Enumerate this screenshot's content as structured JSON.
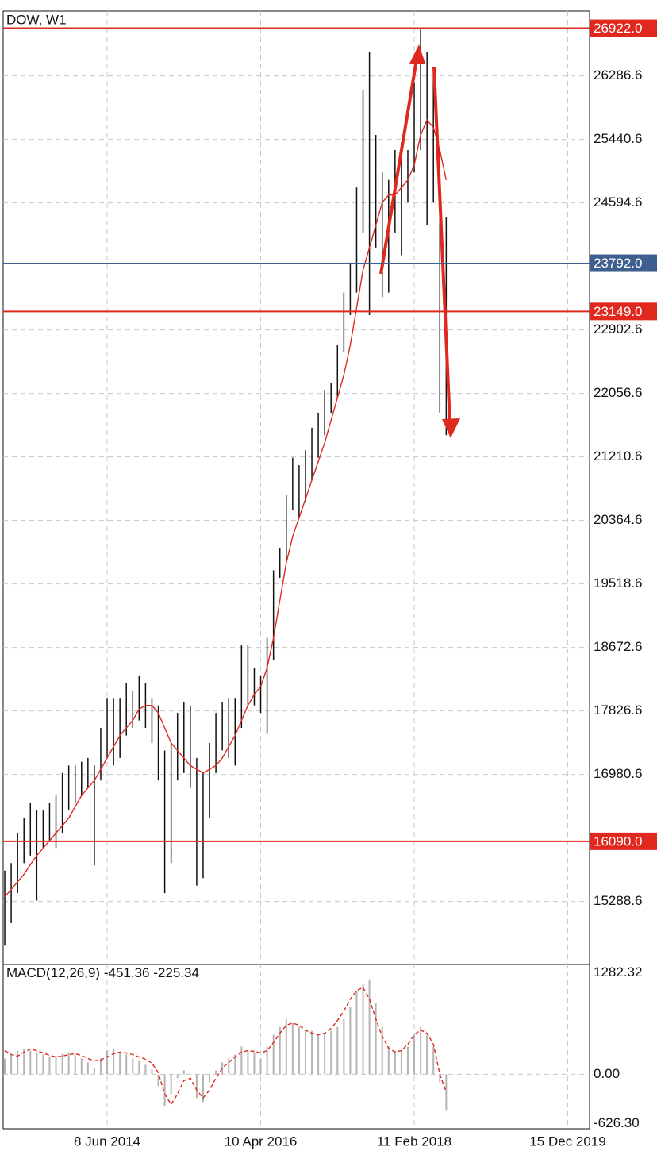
{
  "chart_data": {
    "type": "ohlc",
    "title": "DOW, W1",
    "categories": [
      null,
      null,
      null,
      null,
      null,
      null,
      null,
      null,
      null,
      null,
      null,
      null,
      null,
      null,
      null,
      null,
      "8 Jun 2014",
      null,
      null,
      null,
      null,
      null,
      null,
      null,
      null,
      null,
      null,
      null,
      null,
      null,
      null,
      null,
      null,
      null,
      null,
      null,
      null,
      null,
      null,
      null,
      "10 Apr 2016",
      null,
      null,
      null,
      null,
      null,
      null,
      null,
      null,
      null,
      null,
      null,
      null,
      null,
      null,
      null,
      null,
      null,
      null,
      null,
      null,
      null,
      null,
      null,
      "11 Feb 2018",
      null,
      null,
      null,
      null,
      null,
      null,
      null,
      null,
      null,
      null,
      null,
      null,
      null,
      null,
      null,
      null,
      null,
      null,
      null,
      null,
      null,
      null,
      null,
      "15 Dec 2019",
      null,
      null,
      null
    ],
    "high": [
      15700,
      15800,
      16200,
      16400,
      16600,
      16500,
      16500,
      16600,
      16700,
      17000,
      17100,
      17100,
      17150,
      17200,
      17100,
      17600,
      18000,
      18000,
      18000,
      18200,
      18100,
      18300,
      18200,
      18000,
      17900,
      17300,
      17400,
      17800,
      17950,
      17900,
      17200,
      17000,
      17400,
      17800,
      17950,
      18000,
      18000,
      18700,
      18700,
      18400,
      18300,
      18800,
      19700,
      20000,
      20700,
      21200,
      21100,
      21300,
      21600,
      21800,
      22100,
      22200,
      22700,
      23400,
      23800,
      24800,
      26100,
      26600,
      25500,
      25000,
      24900,
      25300,
      25400,
      25300,
      26200,
      26922,
      26600,
      26300,
      25300,
      24400,
      null,
      null,
      null,
      null,
      null,
      null,
      null,
      null,
      null,
      null,
      null,
      null,
      null,
      null,
      null,
      null,
      null,
      null,
      null,
      null,
      null,
      null
    ],
    "low": [
      14700,
      15000,
      15400,
      15800,
      15900,
      15300,
      16000,
      16100,
      16000,
      16200,
      16500,
      16600,
      16700,
      16800,
      15770,
      16900,
      17200,
      17100,
      17200,
      17500,
      17600,
      17700,
      17600,
      17400,
      16900,
      15400,
      15800,
      16900,
      17000,
      16800,
      15500,
      15600,
      16400,
      17000,
      17300,
      17200,
      17100,
      17600,
      17900,
      17900,
      17800,
      17520,
      18500,
      19600,
      19800,
      20500,
      20400,
      20600,
      20900,
      21200,
      21500,
      21800,
      22000,
      22600,
      23100,
      23400,
      24200,
      23100,
      24000,
      23340,
      23400,
      24200,
      23900,
      24600,
      25000,
      25300,
      24300,
      24600,
      21800,
      21500,
      null,
      null,
      null,
      null,
      null,
      null,
      null,
      null,
      null,
      null,
      null,
      null,
      null,
      null,
      null,
      null,
      null,
      null,
      null,
      null,
      null,
      null
    ],
    "color": "#111111",
    "ma": {
      "color": "#e0281e",
      "values": [
        15350,
        15450,
        15550,
        15650,
        15780,
        15900,
        16000,
        16100,
        16200,
        16300,
        16400,
        16550,
        16700,
        16800,
        16900,
        17050,
        17200,
        17350,
        17500,
        17600,
        17700,
        17850,
        17900,
        17900,
        17800,
        17600,
        17400,
        17300,
        17200,
        17100,
        17050,
        17000,
        17050,
        17100,
        17200,
        17350,
        17500,
        17700,
        17900,
        18050,
        18150,
        18400,
        18800,
        19300,
        19800,
        20150,
        20400,
        20650,
        20900,
        21150,
        21400,
        21700,
        22000,
        22300,
        22700,
        23200,
        23700,
        24000,
        24300,
        24600,
        24700,
        24700,
        24800,
        24900,
        25100,
        25500,
        25700,
        25600,
        25300,
        24900,
        null,
        null,
        null,
        null,
        null,
        null,
        null,
        null,
        null,
        null,
        null,
        null,
        null,
        null,
        null,
        null,
        null,
        null,
        null,
        null,
        null,
        null
      ]
    },
    "levels": [
      {
        "value": 26922,
        "label": "26922.0",
        "color": "#e0281e"
      },
      {
        "value": 23792,
        "label": "23792.0",
        "color": "#3f5f8f"
      },
      {
        "value": 23149,
        "label": "23149.0",
        "color": "#e0281e"
      },
      {
        "value": 16090,
        "label": "16090.0",
        "color": "#e0281e"
      }
    ],
    "ylim": [
      14460,
      27150
    ],
    "yticks": [
      26286.6,
      25440.6,
      24594.6,
      22902.6,
      22056.6,
      21210.6,
      20364.6,
      19518.6,
      18672.6,
      17826.6,
      16980.6,
      15288.6
    ],
    "grid": true,
    "macd": {
      "title": "MACD(12,26,9)",
      "color": "#b4b4b4",
      "values": [
        200,
        250,
        300,
        320,
        300,
        280,
        250,
        220,
        230,
        260,
        280,
        250,
        200,
        150,
        80,
        200,
        300,
        320,
        280,
        250,
        200,
        180,
        120,
        60,
        -150,
        -400,
        -250,
        -50,
        50,
        0,
        -300,
        -350,
        -100,
        50,
        150,
        200,
        250,
        350,
        300,
        280,
        200,
        350,
        500,
        600,
        700,
        650,
        600,
        550,
        550,
        500,
        520,
        550,
        600,
        700,
        850,
        1050,
        1150,
        1200,
        900,
        600,
        350,
        300,
        300,
        350,
        500,
        600,
        500,
        350,
        -100,
        -451.36,
        null,
        null,
        null,
        null,
        null,
        null,
        null,
        null,
        null,
        null,
        null,
        null,
        null,
        null,
        null,
        null,
        null,
        null,
        null,
        null,
        null,
        null
      ],
      "signal": {
        "color": "#e0281e",
        "values": [
          300,
          250,
          230,
          280,
          320,
          300,
          270,
          240,
          220,
          230,
          250,
          260,
          240,
          200,
          170,
          180,
          220,
          260,
          280,
          270,
          250,
          220,
          190,
          140,
          20,
          -250,
          -380,
          -250,
          -80,
          -50,
          -200,
          -300,
          -200,
          -50,
          80,
          150,
          220,
          280,
          300,
          290,
          270,
          300,
          400,
          520,
          620,
          650,
          620,
          560,
          520,
          500,
          520,
          580,
          680,
          800,
          950,
          1060,
          1100,
          950,
          700,
          480,
          330,
          280,
          300,
          380,
          500,
          560,
          520,
          380,
          0,
          -225.34,
          null,
          null,
          null,
          null,
          null,
          null,
          null,
          null,
          null,
          null,
          null,
          null,
          null,
          null,
          null,
          null,
          null,
          null,
          null,
          null,
          null,
          null
        ]
      },
      "ylim": [
        -770,
        1380
      ],
      "yticks": [
        1282.32,
        {
          "value": 0,
          "label": "0.00"
        },
        {
          "value": -626.3,
          "label": "-626.30"
        }
      ]
    }
  }
}
